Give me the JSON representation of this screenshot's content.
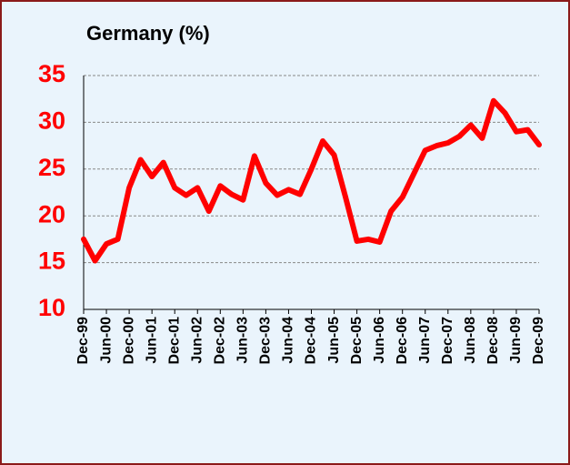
{
  "chart_data": {
    "type": "line",
    "title": "Germany (%)",
    "categories": [
      "Dec-99",
      null,
      "Jun-00",
      null,
      "Dec-00",
      null,
      "Jun-01",
      null,
      "Dec-01",
      null,
      "Jun-02",
      null,
      "Dec-02",
      null,
      "Jun-03",
      null,
      "Dec-03",
      null,
      "Jun-04",
      null,
      "Dec-04",
      null,
      "Jun-05",
      null,
      "Dec-05",
      null,
      "Jun-06",
      null,
      "Dec-06",
      null,
      "Jun-07",
      null,
      "Dec-07",
      null,
      "Jun-08",
      null,
      "Dec-08",
      null,
      "Jun-09",
      null,
      "Dec-09"
    ],
    "series": [
      {
        "name": "Germany",
        "color": "#ff0000",
        "values": [
          17.5,
          15.2,
          17,
          17.5,
          23,
          26,
          24.2,
          25.7,
          23,
          22.2,
          23,
          20.5,
          23.2,
          22.3,
          21.7,
          26.4,
          23.5,
          22.2,
          22.8,
          22.3,
          25,
          28,
          26.5,
          22,
          17.3,
          17.5,
          17.2,
          20.5,
          22,
          24.5,
          27,
          27.5,
          27.8,
          28.5,
          29.7,
          28.3,
          32.3,
          31,
          29,
          29.2,
          27.6
        ]
      }
    ],
    "ylim": [
      10,
      35
    ],
    "yticks": [
      10,
      15,
      20,
      25,
      30,
      35
    ],
    "grid": true
  }
}
